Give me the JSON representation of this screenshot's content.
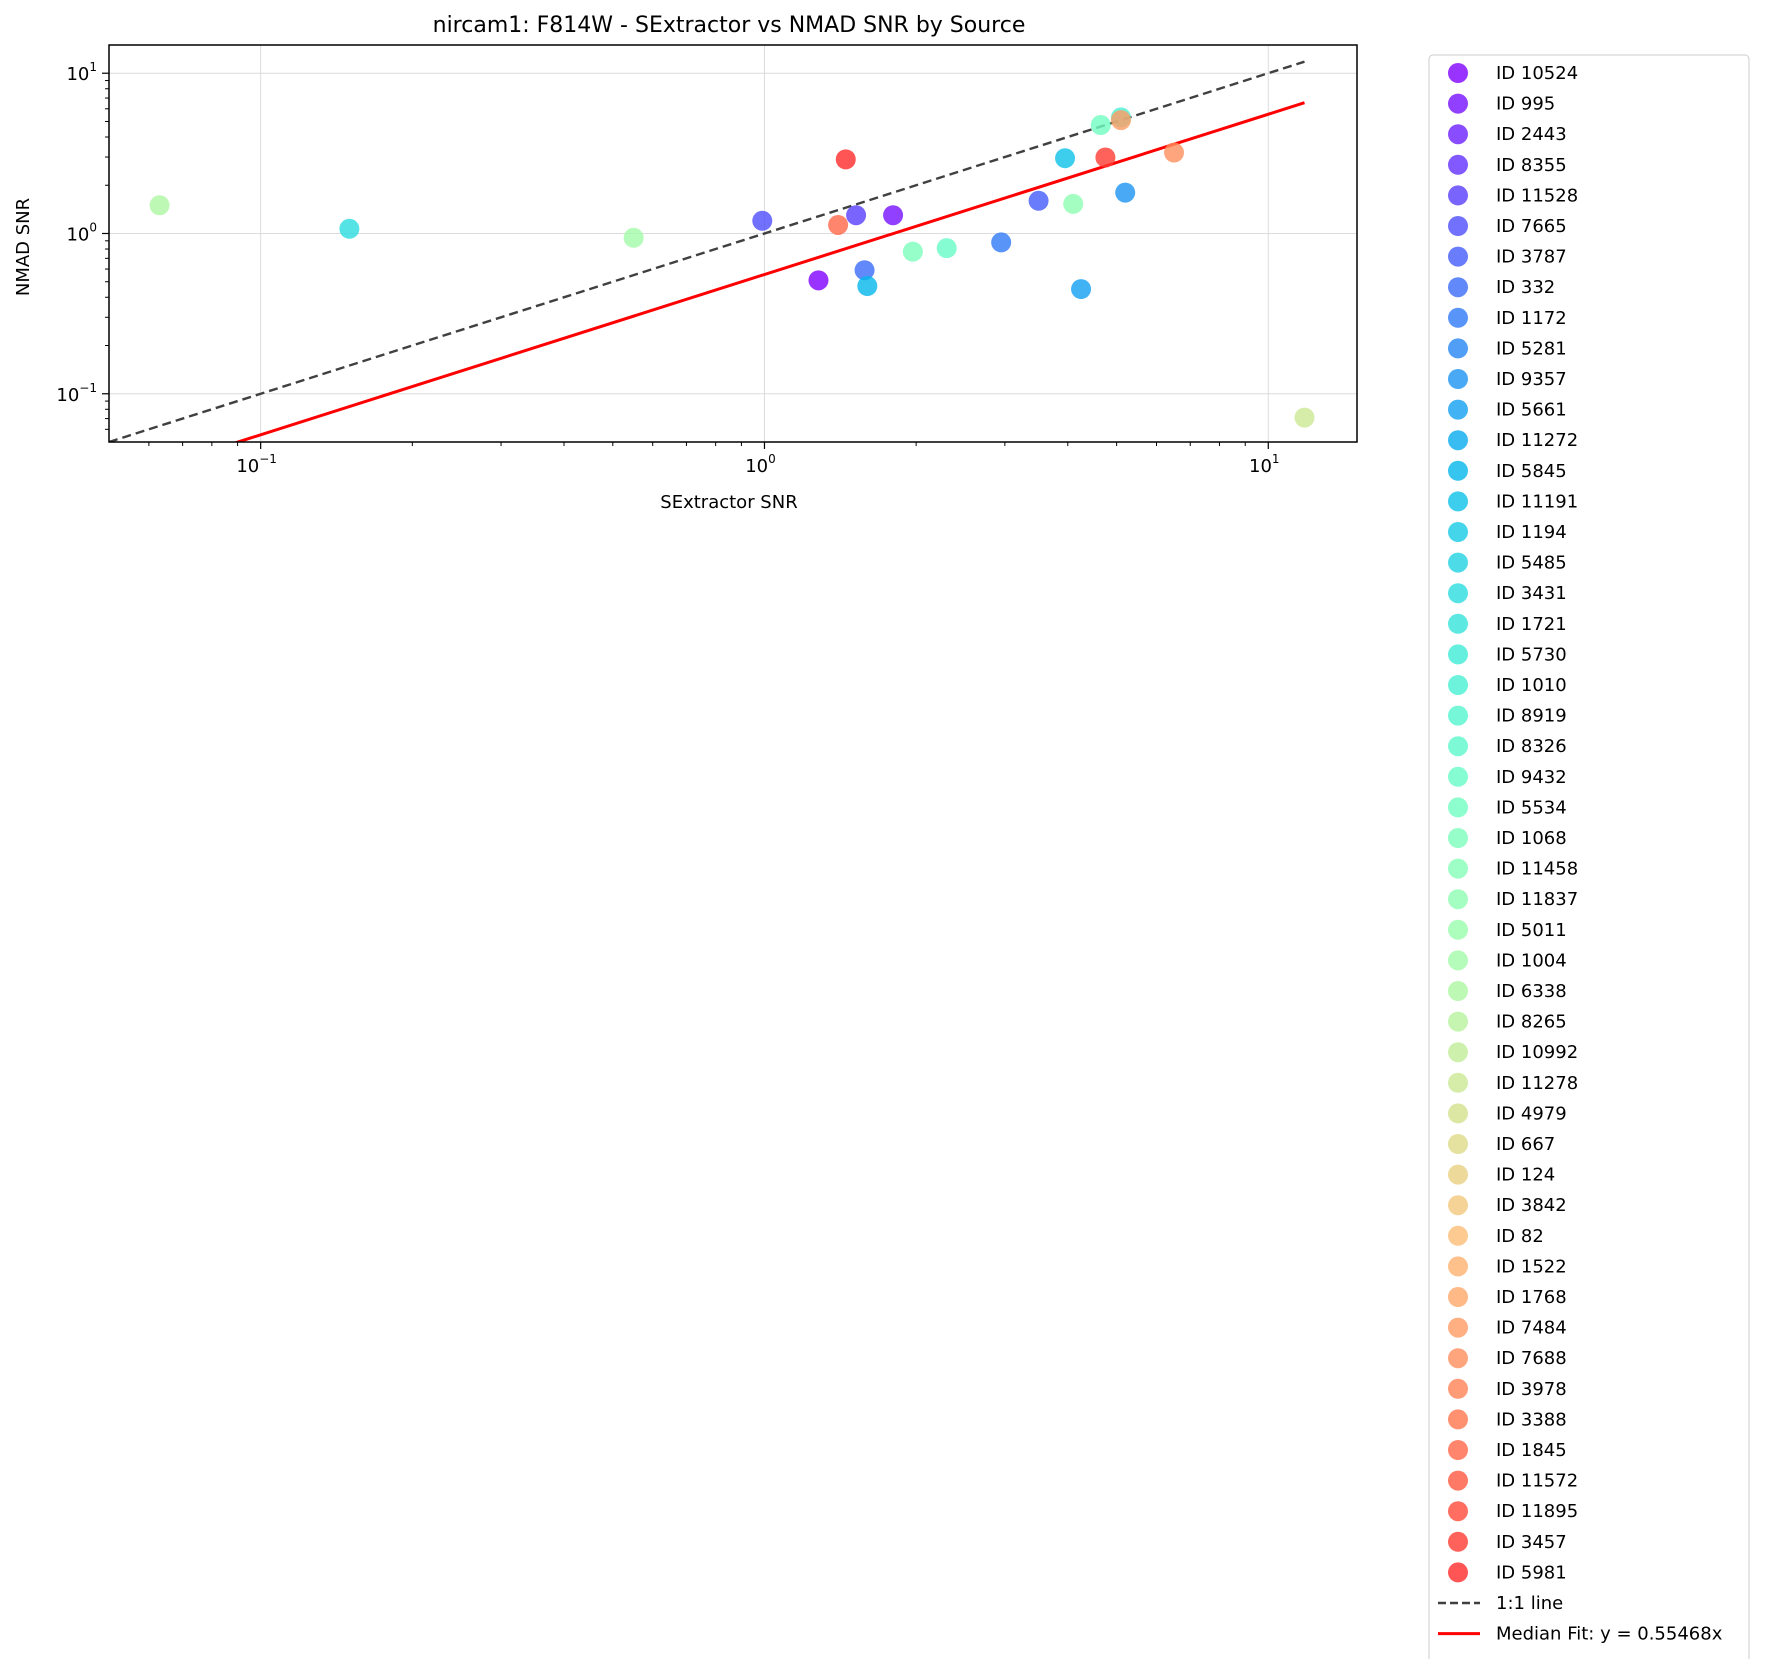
{
  "chart_data": {
    "type": "scatter",
    "title": "nircam1: F814W - SExtractor vs NMAD SNR by Source",
    "xlabel": "SExtractor SNR",
    "ylabel": "NMAD SNR",
    "xscale": "log",
    "yscale": "log",
    "xlim": [
      0.05,
      15
    ],
    "ylim": [
      0.05,
      15
    ],
    "x_ticks": [
      {
        "value": 0.1,
        "label": "10",
        "exp": "−1"
      },
      {
        "value": 1,
        "label": "10",
        "exp": "0"
      },
      {
        "value": 10,
        "label": "10",
        "exp": "1"
      }
    ],
    "y_ticks": [
      {
        "value": 0.1,
        "label": "10",
        "exp": "−1"
      },
      {
        "value": 1,
        "label": "10",
        "exp": "0"
      },
      {
        "value": 10,
        "label": "10",
        "exp": "1"
      }
    ],
    "grid": true,
    "legend_position": "outside-right",
    "series": [
      {
        "name": "ID 10524",
        "color": "#8000ff",
        "x": 1.28,
        "y": 0.51
      },
      {
        "name": "ID 995",
        "color": "#7610ff",
        "x": 1.8,
        "y": 1.3
      },
      {
        "name": "ID 2443",
        "color": "#6c20ff",
        "x": null,
        "y": null
      },
      {
        "name": "ID 8355",
        "color": "#622ffe",
        "x": null,
        "y": null
      },
      {
        "name": "ID 11528",
        "color": "#583ffd",
        "x": 1.52,
        "y": 1.3
      },
      {
        "name": "ID 7665",
        "color": "#4e4efc",
        "x": 0.99,
        "y": 1.2
      },
      {
        "name": "ID 3787",
        "color": "#445dfb",
        "x": 3.5,
        "y": 1.6
      },
      {
        "name": "ID 332",
        "color": "#3a6bf9",
        "x": 1.58,
        "y": 0.59
      },
      {
        "name": "ID 1172",
        "color": "#3079f7",
        "x": 2.95,
        "y": 0.88
      },
      {
        "name": "ID 5281",
        "color": "#2686f5",
        "x": null,
        "y": null
      },
      {
        "name": "ID 9357",
        "color": "#1c93f3",
        "x": 5.2,
        "y": 1.8
      },
      {
        "name": "ID 5661",
        "color": "#129ff1",
        "x": 4.25,
        "y": 0.45
      },
      {
        "name": "ID 11272",
        "color": "#08abee",
        "x": null,
        "y": null
      },
      {
        "name": "ID 5845",
        "color": "#02b6eb",
        "x": 1.6,
        "y": 0.47
      },
      {
        "name": "ID 11191",
        "color": "#0cc0e8",
        "x": 3.95,
        "y": 2.95
      },
      {
        "name": "ID 1194",
        "color": "#16cae5",
        "x": null,
        "y": null
      },
      {
        "name": "ID 5485",
        "color": "#20d3e1",
        "x": null,
        "y": null
      },
      {
        "name": "ID 3431",
        "color": "#2adcde",
        "x": 0.15,
        "y": 1.07
      },
      {
        "name": "ID 1721",
        "color": "#34e4da",
        "x": null,
        "y": null
      },
      {
        "name": "ID 5730",
        "color": "#3eebd6",
        "x": null,
        "y": null
      },
      {
        "name": "ID 1010",
        "color": "#48f0d2",
        "x": 5.1,
        "y": 5.3
      },
      {
        "name": "ID 8919",
        "color": "#52f5ce",
        "x": null,
        "y": null
      },
      {
        "name": "ID 8326",
        "color": "#5cf8ca",
        "x": null,
        "y": null
      },
      {
        "name": "ID 9432",
        "color": "#66fbc5",
        "x": 2.3,
        "y": 0.81
      },
      {
        "name": "ID 5534",
        "color": "#70fec1",
        "x": 4.65,
        "y": 4.75
      },
      {
        "name": "ID 1068",
        "color": "#7afebc",
        "x": 1.97,
        "y": 0.77
      },
      {
        "name": "ID 11458",
        "color": "#84ffb7",
        "x": null,
        "y": null
      },
      {
        "name": "ID 11837",
        "color": "#8efeb2",
        "x": 4.1,
        "y": 1.53
      },
      {
        "name": "ID 5011",
        "color": "#98fcad",
        "x": null,
        "y": null
      },
      {
        "name": "ID 1004",
        "color": "#a2faa8",
        "x": 0.55,
        "y": 0.94
      },
      {
        "name": "ID 6338",
        "color": "#acf7a3",
        "x": 0.063,
        "y": 1.5
      },
      {
        "name": "ID 8265",
        "color": "#b6f39d",
        "x": null,
        "y": null
      },
      {
        "name": "ID 10992",
        "color": "#c0ee98",
        "x": null,
        "y": null
      },
      {
        "name": "ID 11278",
        "color": "#cae893",
        "x": 11.8,
        "y": 0.071
      },
      {
        "name": "ID 4979",
        "color": "#d4e18d",
        "x": null,
        "y": null
      },
      {
        "name": "ID 667",
        "color": "#ded987",
        "x": null,
        "y": null
      },
      {
        "name": "ID 124",
        "color": "#e8d081",
        "x": null,
        "y": null
      },
      {
        "name": "ID 3842",
        "color": "#f2c77b",
        "x": null,
        "y": null
      },
      {
        "name": "ID 82",
        "color": "#fcbd75",
        "x": null,
        "y": null
      },
      {
        "name": "ID 1522",
        "color": "#ffb26f",
        "x": null,
        "y": null
      },
      {
        "name": "ID 1768",
        "color": "#ffa769",
        "x": null,
        "y": null
      },
      {
        "name": "ID 7484",
        "color": "#ff9b62",
        "x": 5.1,
        "y": 5.1
      },
      {
        "name": "ID 7688",
        "color": "#ff8f5c",
        "x": 6.5,
        "y": 3.2
      },
      {
        "name": "ID 3978",
        "color": "#ff8255",
        "x": null,
        "y": null
      },
      {
        "name": "ID 3388",
        "color": "#ff754e",
        "x": null,
        "y": null
      },
      {
        "name": "ID 1845",
        "color": "#ff6747",
        "x": 1.4,
        "y": 1.13
      },
      {
        "name": "ID 11572",
        "color": "#ff5940",
        "x": null,
        "y": null
      },
      {
        "name": "ID 11895",
        "color": "#ff4a39",
        "x": null,
        "y": null
      },
      {
        "name": "ID 3457",
        "color": "#ff3b31",
        "x": 4.75,
        "y": 2.98
      },
      {
        "name": "ID 5981",
        "color": "#ff2c2a",
        "x": 1.45,
        "y": 2.9
      }
    ],
    "lines": [
      {
        "name": "1:1 line",
        "color": "#404040",
        "dash": true,
        "slope": 1,
        "x_range": [
          0.05,
          11.8
        ]
      },
      {
        "name": "Median Fit: y = 0.55468x",
        "color": "#ff0000",
        "dash": false,
        "slope": 0.55468,
        "x_range": [
          0.05,
          11.8
        ]
      }
    ]
  }
}
